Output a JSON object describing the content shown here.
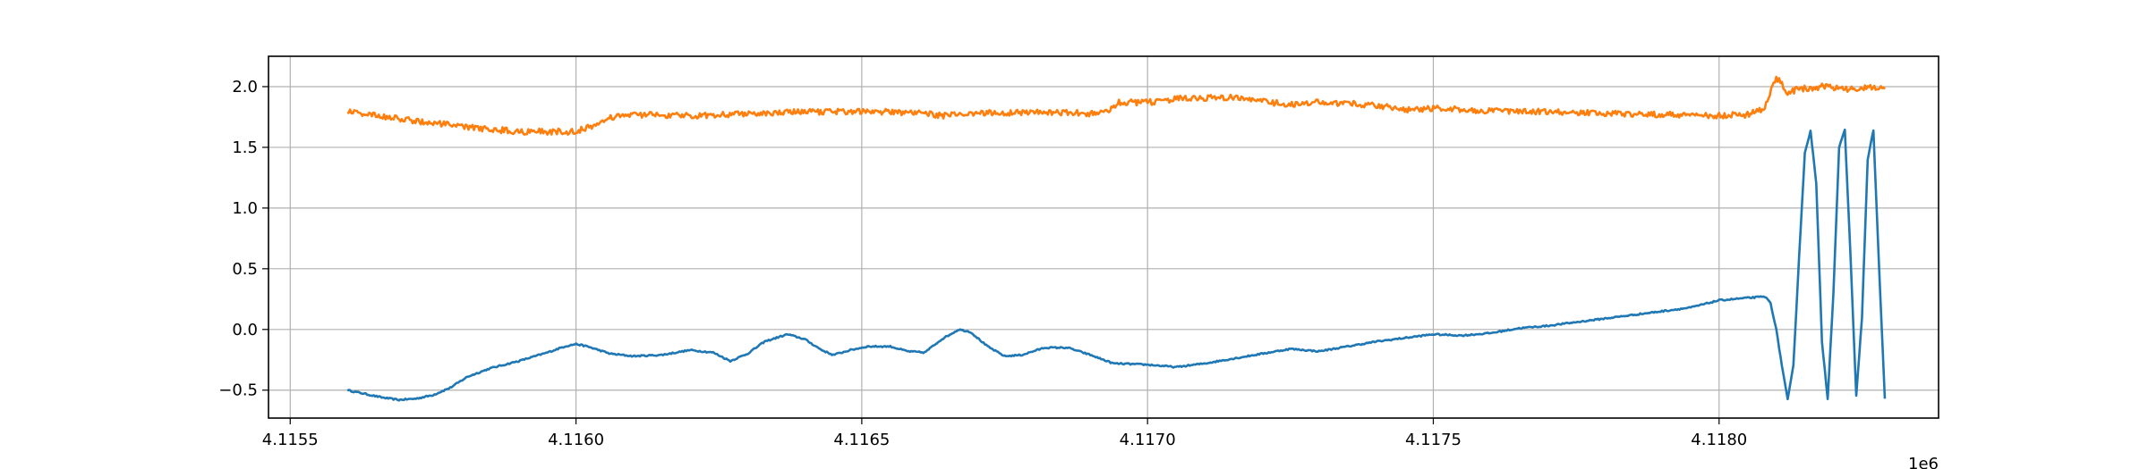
{
  "chart_data": {
    "type": "line",
    "title": "",
    "xlabel": "",
    "ylabel": "",
    "x_offset_label": "1e6",
    "xlim": [
      4.115462,
      4.118384
    ],
    "ylim": [
      -0.73,
      2.25
    ],
    "grid": true,
    "x_ticks": [
      {
        "value": 4.1155,
        "label": "4.1155"
      },
      {
        "value": 4.116,
        "label": "4.1160"
      },
      {
        "value": 4.1165,
        "label": "4.1165"
      },
      {
        "value": 4.117,
        "label": "4.1170"
      },
      {
        "value": 4.1175,
        "label": "4.1175"
      },
      {
        "value": 4.118,
        "label": "4.1180"
      }
    ],
    "y_ticks": [
      {
        "value": -0.5,
        "label": "−0.5"
      },
      {
        "value": 0.0,
        "label": "0.0"
      },
      {
        "value": 0.5,
        "label": "0.5"
      },
      {
        "value": 1.0,
        "label": "1.0"
      },
      {
        "value": 1.5,
        "label": "1.5"
      },
      {
        "value": 2.0,
        "label": "2.0"
      }
    ],
    "series": [
      {
        "color": "#1f77b4",
        "points": [
          [
            4.1156,
            -0.5
          ],
          [
            4.11563,
            -0.53
          ],
          [
            4.11566,
            -0.56
          ],
          [
            4.11569,
            -0.58
          ],
          [
            4.11572,
            -0.57
          ],
          [
            4.11575,
            -0.54
          ],
          [
            4.11578,
            -0.48
          ],
          [
            4.11581,
            -0.39
          ],
          [
            4.11585,
            -0.32
          ],
          [
            4.1159,
            -0.26
          ],
          [
            4.11595,
            -0.19
          ],
          [
            4.11598,
            -0.14
          ],
          [
            4.116,
            -0.12
          ],
          [
            4.11602,
            -0.14
          ],
          [
            4.11606,
            -0.2
          ],
          [
            4.1161,
            -0.22
          ],
          [
            4.11615,
            -0.21
          ],
          [
            4.1162,
            -0.17
          ],
          [
            4.11624,
            -0.19
          ],
          [
            4.11627,
            -0.26
          ],
          [
            4.1163,
            -0.2
          ],
          [
            4.11633,
            -0.1
          ],
          [
            4.11637,
            -0.04
          ],
          [
            4.1164,
            -0.08
          ],
          [
            4.11643,
            -0.17
          ],
          [
            4.11645,
            -0.21
          ],
          [
            4.11648,
            -0.17
          ],
          [
            4.11651,
            -0.14
          ],
          [
            4.11655,
            -0.14
          ],
          [
            4.11658,
            -0.18
          ],
          [
            4.11661,
            -0.19
          ],
          [
            4.11664,
            -0.08
          ],
          [
            4.11667,
            0.0
          ],
          [
            4.11669,
            -0.02
          ],
          [
            4.11672,
            -0.14
          ],
          [
            4.11675,
            -0.22
          ],
          [
            4.11678,
            -0.21
          ],
          [
            4.11682,
            -0.15
          ],
          [
            4.11686,
            -0.15
          ],
          [
            4.1169,
            -0.21
          ],
          [
            4.11694,
            -0.28
          ],
          [
            4.117,
            -0.29
          ],
          [
            4.11705,
            -0.31
          ],
          [
            4.1171,
            -0.28
          ],
          [
            4.11715,
            -0.24
          ],
          [
            4.1172,
            -0.2
          ],
          [
            4.11725,
            -0.16
          ],
          [
            4.1173,
            -0.18
          ],
          [
            4.11735,
            -0.14
          ],
          [
            4.1174,
            -0.1
          ],
          [
            4.11745,
            -0.07
          ],
          [
            4.1175,
            -0.04
          ],
          [
            4.11755,
            -0.05
          ],
          [
            4.1176,
            -0.03
          ],
          [
            4.11765,
            0.01
          ],
          [
            4.1177,
            0.03
          ],
          [
            4.11775,
            0.06
          ],
          [
            4.1178,
            0.09
          ],
          [
            4.11785,
            0.12
          ],
          [
            4.1179,
            0.15
          ],
          [
            4.11795,
            0.18
          ],
          [
            4.118,
            0.24
          ],
          [
            4.11805,
            0.26
          ],
          [
            4.11808,
            0.27
          ],
          [
            4.11809,
            0.22
          ],
          [
            4.1181,
            0.0
          ],
          [
            4.11811,
            -0.3
          ],
          [
            4.11812,
            -0.58
          ],
          [
            4.11813,
            -0.3
          ],
          [
            4.11814,
            0.6
          ],
          [
            4.11815,
            1.45
          ],
          [
            4.11816,
            1.64
          ],
          [
            4.11817,
            1.2
          ],
          [
            4.11818,
            -0.1
          ],
          [
            4.11819,
            -0.57
          ],
          [
            4.1182,
            0.3
          ],
          [
            4.11821,
            1.5
          ],
          [
            4.11822,
            1.64
          ],
          [
            4.11823,
            0.6
          ],
          [
            4.11824,
            -0.55
          ],
          [
            4.11825,
            0.1
          ],
          [
            4.11826,
            1.4
          ],
          [
            4.11827,
            1.64
          ],
          [
            4.11828,
            0.5
          ],
          [
            4.11829,
            -0.57
          ]
        ]
      },
      {
        "color": "#ff7f0e",
        "points": [
          [
            4.1156,
            1.8
          ],
          [
            4.11565,
            1.76
          ],
          [
            4.1157,
            1.73
          ],
          [
            4.11575,
            1.7
          ],
          [
            4.1158,
            1.67
          ],
          [
            4.11585,
            1.65
          ],
          [
            4.1159,
            1.63
          ],
          [
            4.11595,
            1.63
          ],
          [
            4.116,
            1.63
          ],
          [
            4.11603,
            1.68
          ],
          [
            4.11607,
            1.76
          ],
          [
            4.11612,
            1.77
          ],
          [
            4.1162,
            1.76
          ],
          [
            4.11625,
            1.77
          ],
          [
            4.1163,
            1.78
          ],
          [
            4.1164,
            1.79
          ],
          [
            4.1165,
            1.8
          ],
          [
            4.1166,
            1.78
          ],
          [
            4.11665,
            1.76
          ],
          [
            4.1167,
            1.78
          ],
          [
            4.1168,
            1.79
          ],
          [
            4.1169,
            1.78
          ],
          [
            4.11693,
            1.8
          ],
          [
            4.11695,
            1.87
          ],
          [
            4.117,
            1.87
          ],
          [
            4.11705,
            1.9
          ],
          [
            4.11715,
            1.91
          ],
          [
            4.1172,
            1.88
          ],
          [
            4.11725,
            1.85
          ],
          [
            4.1173,
            1.87
          ],
          [
            4.1174,
            1.85
          ],
          [
            4.11745,
            1.81
          ],
          [
            4.1175,
            1.82
          ],
          [
            4.1176,
            1.8
          ],
          [
            4.1177,
            1.79
          ],
          [
            4.1178,
            1.78
          ],
          [
            4.1179,
            1.77
          ],
          [
            4.118,
            1.76
          ],
          [
            4.11805,
            1.77
          ],
          [
            4.11808,
            1.82
          ],
          [
            4.1181,
            2.08
          ],
          [
            4.11811,
            2.02
          ],
          [
            4.11812,
            1.95
          ],
          [
            4.11814,
            1.98
          ],
          [
            4.11818,
            2.0
          ],
          [
            4.11822,
            1.98
          ],
          [
            4.11826,
            1.99
          ],
          [
            4.11829,
            1.98
          ]
        ]
      }
    ]
  }
}
